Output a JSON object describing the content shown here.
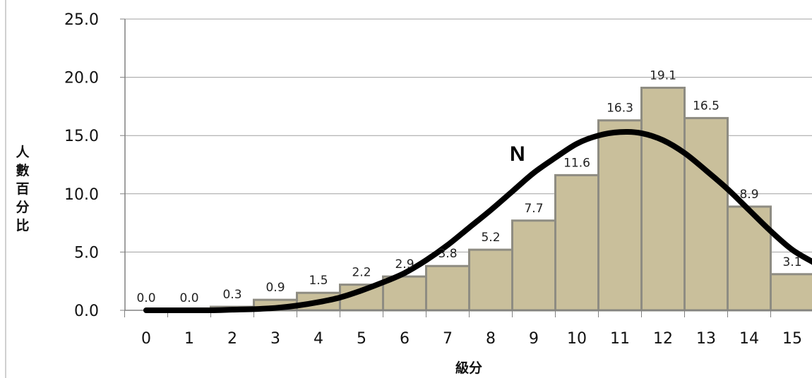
{
  "chart_data": {
    "type": "bar",
    "categories": [
      "0",
      "1",
      "2",
      "3",
      "4",
      "5",
      "6",
      "7",
      "8",
      "9",
      "10",
      "11",
      "12",
      "13",
      "14",
      "15"
    ],
    "values": [
      0.0,
      0.0,
      0.3,
      0.9,
      1.5,
      2.2,
      2.9,
      3.8,
      5.2,
      7.7,
      11.6,
      16.3,
      19.1,
      16.5,
      8.9,
      3.1
    ],
    "data_labels": [
      "0.0",
      "0.0",
      "0.3",
      "0.9",
      "1.5",
      "2.2",
      "2.9",
      "3.8",
      "5.2",
      "7.7",
      "11.6",
      "16.3",
      "19.1",
      "16.5",
      "8.9",
      "3.1"
    ],
    "ylabel": "人數百分比",
    "ylabel_chars": [
      "人",
      "數",
      "百",
      "分",
      "比"
    ],
    "xlabel": "級分",
    "ylim": [
      0,
      25
    ],
    "yticks": [
      "0.0",
      "5.0",
      "10.0",
      "15.0",
      "20.0",
      "25.0"
    ],
    "grid": true,
    "overlay_curve": {
      "label": "N",
      "type": "normal-curve",
      "points": [
        [
          0,
          0.0
        ],
        [
          0.5,
          0.0
        ],
        [
          1,
          0.0
        ],
        [
          1.5,
          0.0
        ],
        [
          2,
          0.05
        ],
        [
          2.5,
          0.1
        ],
        [
          3,
          0.2
        ],
        [
          3.5,
          0.4
        ],
        [
          4,
          0.7
        ],
        [
          4.5,
          1.1
        ],
        [
          5,
          1.7
        ],
        [
          5.5,
          2.4
        ],
        [
          6,
          3.2
        ],
        [
          6.5,
          4.3
        ],
        [
          7,
          5.6
        ],
        [
          7.5,
          7.1
        ],
        [
          8,
          8.6
        ],
        [
          8.5,
          10.2
        ],
        [
          9,
          11.8
        ],
        [
          9.5,
          13.1
        ],
        [
          10,
          14.3
        ],
        [
          10.5,
          15.0
        ],
        [
          11,
          15.3
        ],
        [
          11.5,
          15.2
        ],
        [
          12,
          14.6
        ],
        [
          12.5,
          13.5
        ],
        [
          13,
          12.0
        ],
        [
          13.5,
          10.4
        ],
        [
          14,
          8.6
        ],
        [
          14.5,
          6.8
        ],
        [
          15,
          5.2
        ],
        [
          15.5,
          4.1
        ]
      ]
    },
    "colors": {
      "bar_fill": "#c9bf9b",
      "bar_stroke": "#8e8c82",
      "curve": "#000000",
      "grid": "#a0a0a0",
      "axis": "#808080"
    }
  }
}
